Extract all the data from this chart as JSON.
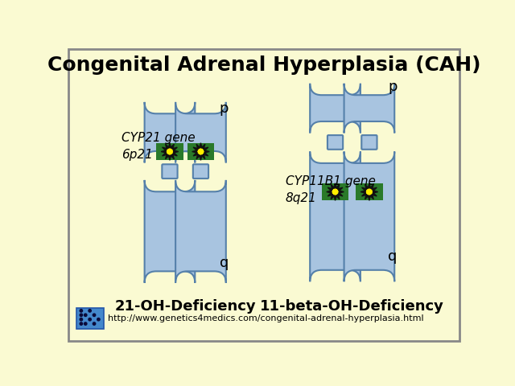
{
  "title": "Congenital Adrenal Hyperplasia (CAH)",
  "background_color": "#FAFAD2",
  "border_color": "#888888",
  "chrom_color": "#A8C4E0",
  "chrom_edge_color": "#5580AA",
  "gene_band_color": "#2A7A2A",
  "star_outer_color": "#111111",
  "star_inner_color": "#FFEE00",
  "label_cyp21_line1": "CYP21",
  "label_cyp21_line2": " gene",
  "label_cyp21_line3": "6p21",
  "label_cyp11_line1": "CYP11B1",
  "label_cyp11_line2": " gene",
  "label_cyp11_line3": "8q21",
  "label_p": "p",
  "label_q": "q",
  "label_21oh": "21-OH-Deficiency",
  "label_11oh": "11-beta-OH-Deficiency",
  "url_text": "http://www.genetics4medics.com/congenital-adrenal-hyperplasia.html",
  "title_fontsize": 18,
  "gene_label_fontsize": 11,
  "pq_fontsize": 13,
  "url_fontsize": 8,
  "deficiency_fontsize": 13,
  "icon_color": "#4488CC",
  "icon_dot_color": "#0a0a3a"
}
